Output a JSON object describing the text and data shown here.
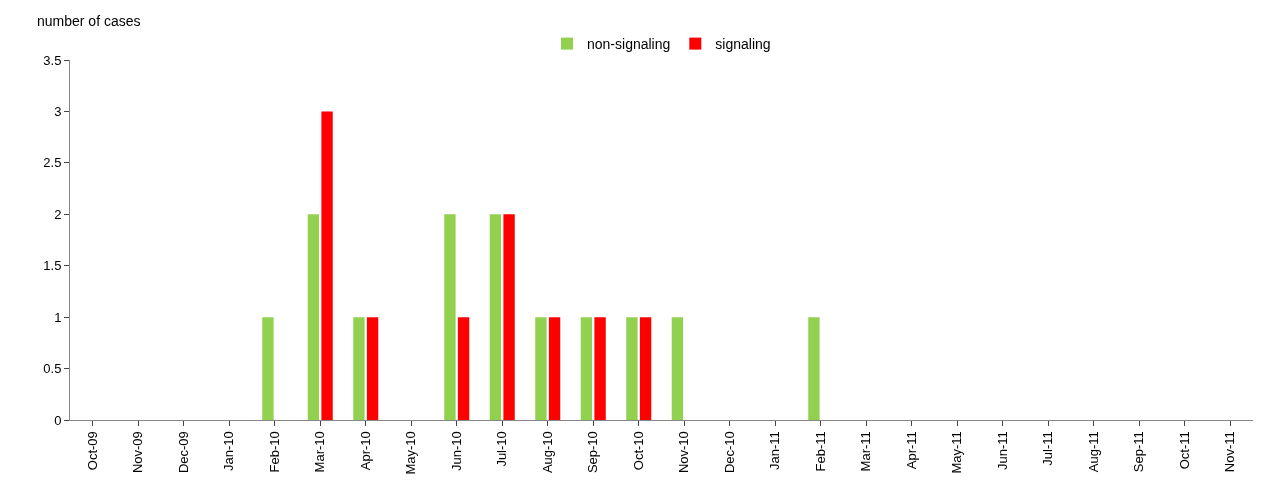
{
  "chart_data": {
    "type": "bar",
    "ylabel": "number of cases",
    "categories": [
      "Oct-09",
      "Nov-09",
      "Dec-09",
      "Jan-10",
      "Feb-10",
      "Mar-10",
      "Apr-10",
      "May-10",
      "Jun-10",
      "Jul-10",
      "Aug-10",
      "Sep-10",
      "Oct-10",
      "Nov-10",
      "Dec-10",
      "Jan-11",
      "Feb-11",
      "Mar-11",
      "Apr-11",
      "May-11",
      "Jun-11",
      "Jul-11",
      "Aug-11",
      "Sep-11",
      "Oct-11",
      "Nov-11"
    ],
    "series": [
      {
        "name": "non-signaling",
        "color": "#92d050",
        "values": [
          0,
          0,
          0,
          0,
          1,
          2,
          1,
          0,
          2,
          2,
          1,
          1,
          1,
          1,
          0,
          0,
          1,
          0,
          0,
          0,
          0,
          0,
          0,
          0,
          0,
          0
        ]
      },
      {
        "name": "signaling",
        "color": "#ff0000",
        "values": [
          0,
          0,
          0,
          0,
          0,
          3,
          1,
          0,
          1,
          2,
          1,
          1,
          1,
          0,
          0,
          0,
          0,
          0,
          0,
          0,
          0,
          0,
          0,
          0,
          0,
          0
        ]
      }
    ],
    "ylim": [
      0,
      3.5
    ],
    "yticks": [
      0,
      0.5,
      1,
      1.5,
      2,
      2.5,
      3,
      3.5
    ],
    "grid": false,
    "legend": "top"
  }
}
